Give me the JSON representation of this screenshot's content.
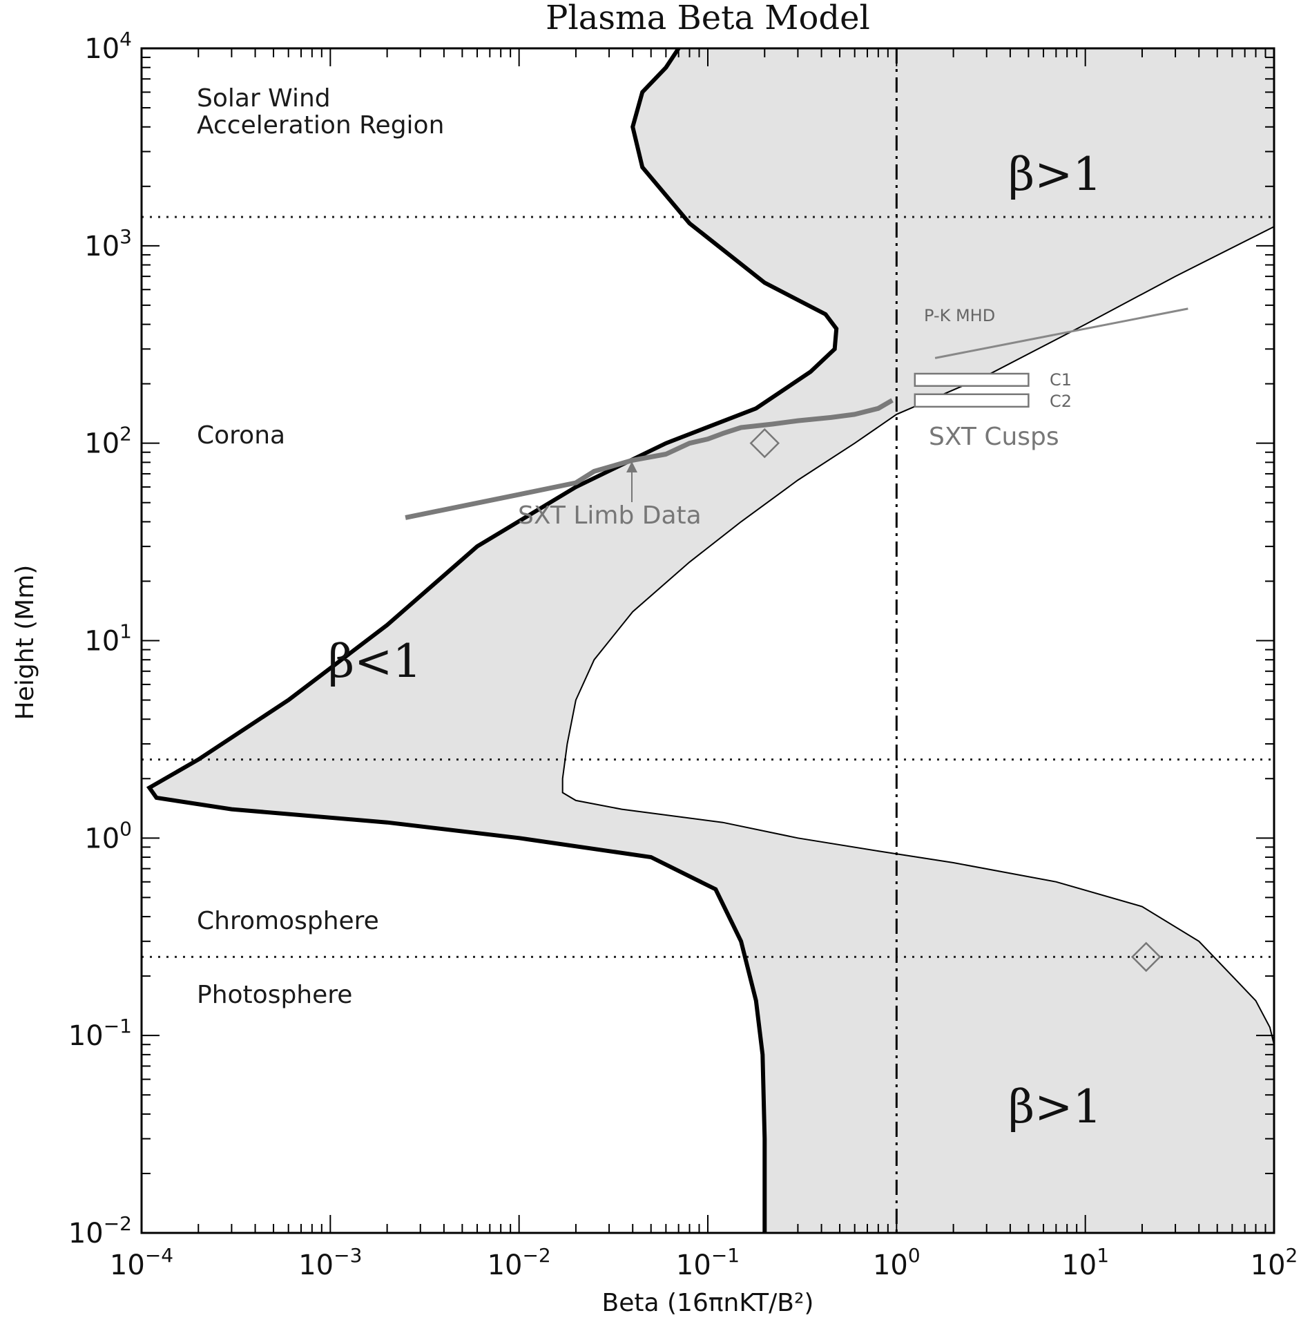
{
  "chart_data": {
    "type": "line",
    "title": "Plasma Beta Model",
    "xlabel": "Beta (16πnKT/B²)",
    "ylabel": "Height (Mm)",
    "xscale": "log",
    "yscale": "log",
    "xlim": [
      0.0001,
      100
    ],
    "ylim": [
      0.01,
      10000
    ],
    "x_ticks": [
      {
        "value": 0.0001,
        "base": "10",
        "exp": "−4"
      },
      {
        "value": 0.001,
        "base": "10",
        "exp": "−3"
      },
      {
        "value": 0.01,
        "base": "10",
        "exp": "−2"
      },
      {
        "value": 0.1,
        "base": "10",
        "exp": "−1"
      },
      {
        "value": 1,
        "base": "10",
        "exp": "0"
      },
      {
        "value": 10,
        "base": "10",
        "exp": "1"
      },
      {
        "value": 100,
        "base": "10",
        "exp": "2"
      }
    ],
    "y_ticks": [
      {
        "value": 0.01,
        "base": "10",
        "exp": "−2"
      },
      {
        "value": 0.1,
        "base": "10",
        "exp": "−1"
      },
      {
        "value": 1,
        "base": "10",
        "exp": "0"
      },
      {
        "value": 10,
        "base": "10",
        "exp": "1"
      },
      {
        "value": 100,
        "base": "10",
        "exp": "2"
      },
      {
        "value": 1000,
        "base": "10",
        "exp": "3"
      },
      {
        "value": 10000,
        "base": "10",
        "exp": "4"
      }
    ],
    "boundary_low": [
      [
        0.2,
        0.01
      ],
      [
        0.2,
        0.03
      ],
      [
        0.195,
        0.08
      ],
      [
        0.18,
        0.15
      ],
      [
        0.15,
        0.3
      ],
      [
        0.11,
        0.55
      ],
      [
        0.05,
        0.8
      ],
      [
        0.01,
        1.0
      ],
      [
        0.002,
        1.2
      ],
      [
        0.0003,
        1.4
      ],
      [
        0.00012,
        1.6
      ],
      [
        0.00011,
        1.8
      ],
      [
        0.0002,
        2.5
      ],
      [
        0.0006,
        5
      ],
      [
        0.002,
        12
      ],
      [
        0.006,
        30
      ],
      [
        0.02,
        60
      ],
      [
        0.06,
        100
      ],
      [
        0.18,
        150
      ],
      [
        0.35,
        230
      ],
      [
        0.47,
        300
      ],
      [
        0.48,
        380
      ],
      [
        0.42,
        450
      ],
      [
        0.2,
        650
      ],
      [
        0.08,
        1300
      ],
      [
        0.045,
        2500
      ],
      [
        0.04,
        4000
      ],
      [
        0.045,
        6000
      ],
      [
        0.06,
        8000
      ],
      [
        0.07,
        10000
      ]
    ],
    "boundary_high": [
      [
        100,
        0.09
      ],
      [
        95,
        0.11
      ],
      [
        80,
        0.15
      ],
      [
        60,
        0.2
      ],
      [
        40,
        0.3
      ],
      [
        20,
        0.45
      ],
      [
        7,
        0.6
      ],
      [
        2,
        0.75
      ],
      [
        0.8,
        0.86
      ],
      [
        0.3,
        1.0
      ],
      [
        0.12,
        1.2
      ],
      [
        0.035,
        1.4
      ],
      [
        0.02,
        1.55
      ],
      [
        0.017,
        1.7
      ],
      [
        0.017,
        2.0
      ],
      [
        0.018,
        3
      ],
      [
        0.02,
        5
      ],
      [
        0.025,
        8
      ],
      [
        0.04,
        14
      ],
      [
        0.08,
        25
      ],
      [
        0.15,
        40
      ],
      [
        0.3,
        65
      ],
      [
        0.6,
        100
      ],
      [
        1.0,
        140
      ],
      [
        3,
        220
      ],
      [
        10,
        400
      ],
      [
        30,
        700
      ],
      [
        100,
        1250
      ]
    ],
    "series": [
      {
        "name": "SXT Limb Data",
        "color": "#7a7a7a",
        "points": [
          [
            0.0025,
            42
          ],
          [
            0.01,
            55
          ],
          [
            0.02,
            63
          ],
          [
            0.025,
            72
          ],
          [
            0.04,
            82
          ],
          [
            0.06,
            88
          ],
          [
            0.08,
            100
          ],
          [
            0.1,
            105
          ],
          [
            0.12,
            112
          ],
          [
            0.15,
            120
          ],
          [
            0.22,
            125
          ],
          [
            0.3,
            130
          ],
          [
            0.45,
            135
          ],
          [
            0.6,
            140
          ],
          [
            0.8,
            150
          ],
          [
            0.95,
            165
          ]
        ]
      },
      {
        "name": "P-K MHD",
        "color": "#888888",
        "points": [
          [
            1.6,
            270
          ],
          [
            35,
            480
          ]
        ]
      }
    ],
    "cusps": [
      {
        "name": "C1",
        "x0": 1.25,
        "x1": 5,
        "y0": 195,
        "y1": 225
      },
      {
        "name": "C2",
        "x0": 1.25,
        "x1": 5,
        "y0": 153,
        "y1": 177
      }
    ],
    "diamonds": [
      {
        "x": 0.2,
        "y": 100
      },
      {
        "x": 21,
        "y": 0.25
      }
    ],
    "hlines_dotted": [
      1400,
      2.5,
      0.25
    ],
    "vline_dashdot": 1,
    "annotations": {
      "sxt_limb_data": "SXT Limb Data",
      "sxt_cusps": "SXT Cusps",
      "pk_mhd": "P-K MHD",
      "c1": "C1",
      "c2": "C2"
    },
    "regions": {
      "solar_wind_1": "Solar Wind",
      "solar_wind_2": "Acceleration Region",
      "corona": "Corona",
      "chromosphere": "Chromosphere",
      "photosphere": "Photosphere"
    },
    "beta_labels": {
      "gt": "β>1",
      "lt": "β<1"
    },
    "colors": {
      "fill": "#e3e3e3",
      "thick_boundary": "#000000",
      "thin_boundary": "#000000",
      "grey_data": "#7a7a7a"
    },
    "grid": false
  }
}
